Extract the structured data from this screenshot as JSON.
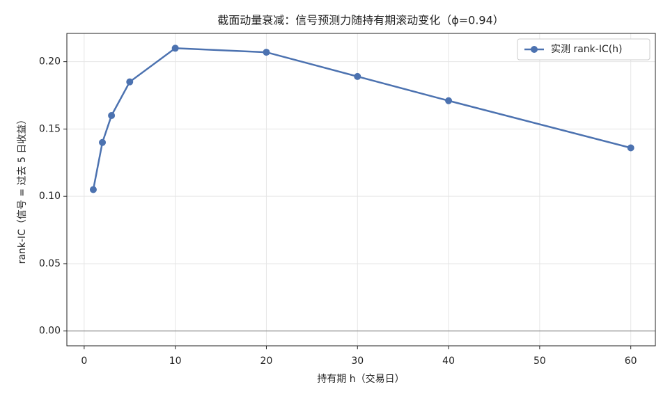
{
  "chart_data": {
    "type": "line",
    "title": "截面动量衰减：信号预测力随持有期滚动变化（ϕ=0.94）",
    "xlabel": "持有期 h（交易日）",
    "ylabel": "rank-IC（信号 = 过去 5 日收益）",
    "x": [
      1,
      2,
      3,
      5,
      10,
      20,
      30,
      40,
      60
    ],
    "series": [
      {
        "name": "实测 rank-IC(h)",
        "color": "#4c72b0",
        "values": [
          0.105,
          0.14,
          0.16,
          0.185,
          0.21,
          0.207,
          0.189,
          0.171,
          0.136
        ]
      }
    ],
    "xlim": [
      -1.9,
      62.7
    ],
    "ylim": [
      -0.011,
      0.221
    ],
    "xticks": [
      0,
      10,
      20,
      30,
      40,
      50,
      60
    ],
    "yticks": [
      {
        "value": 0,
        "label": "0.00"
      },
      {
        "value": 0.05,
        "label": "0.05"
      },
      {
        "value": 0.1,
        "label": "0.10"
      },
      {
        "value": 0.15,
        "label": "0.15"
      },
      {
        "value": 0.2,
        "label": "0.20"
      }
    ],
    "hline": 0,
    "grid": true,
    "legend": "upper right"
  }
}
